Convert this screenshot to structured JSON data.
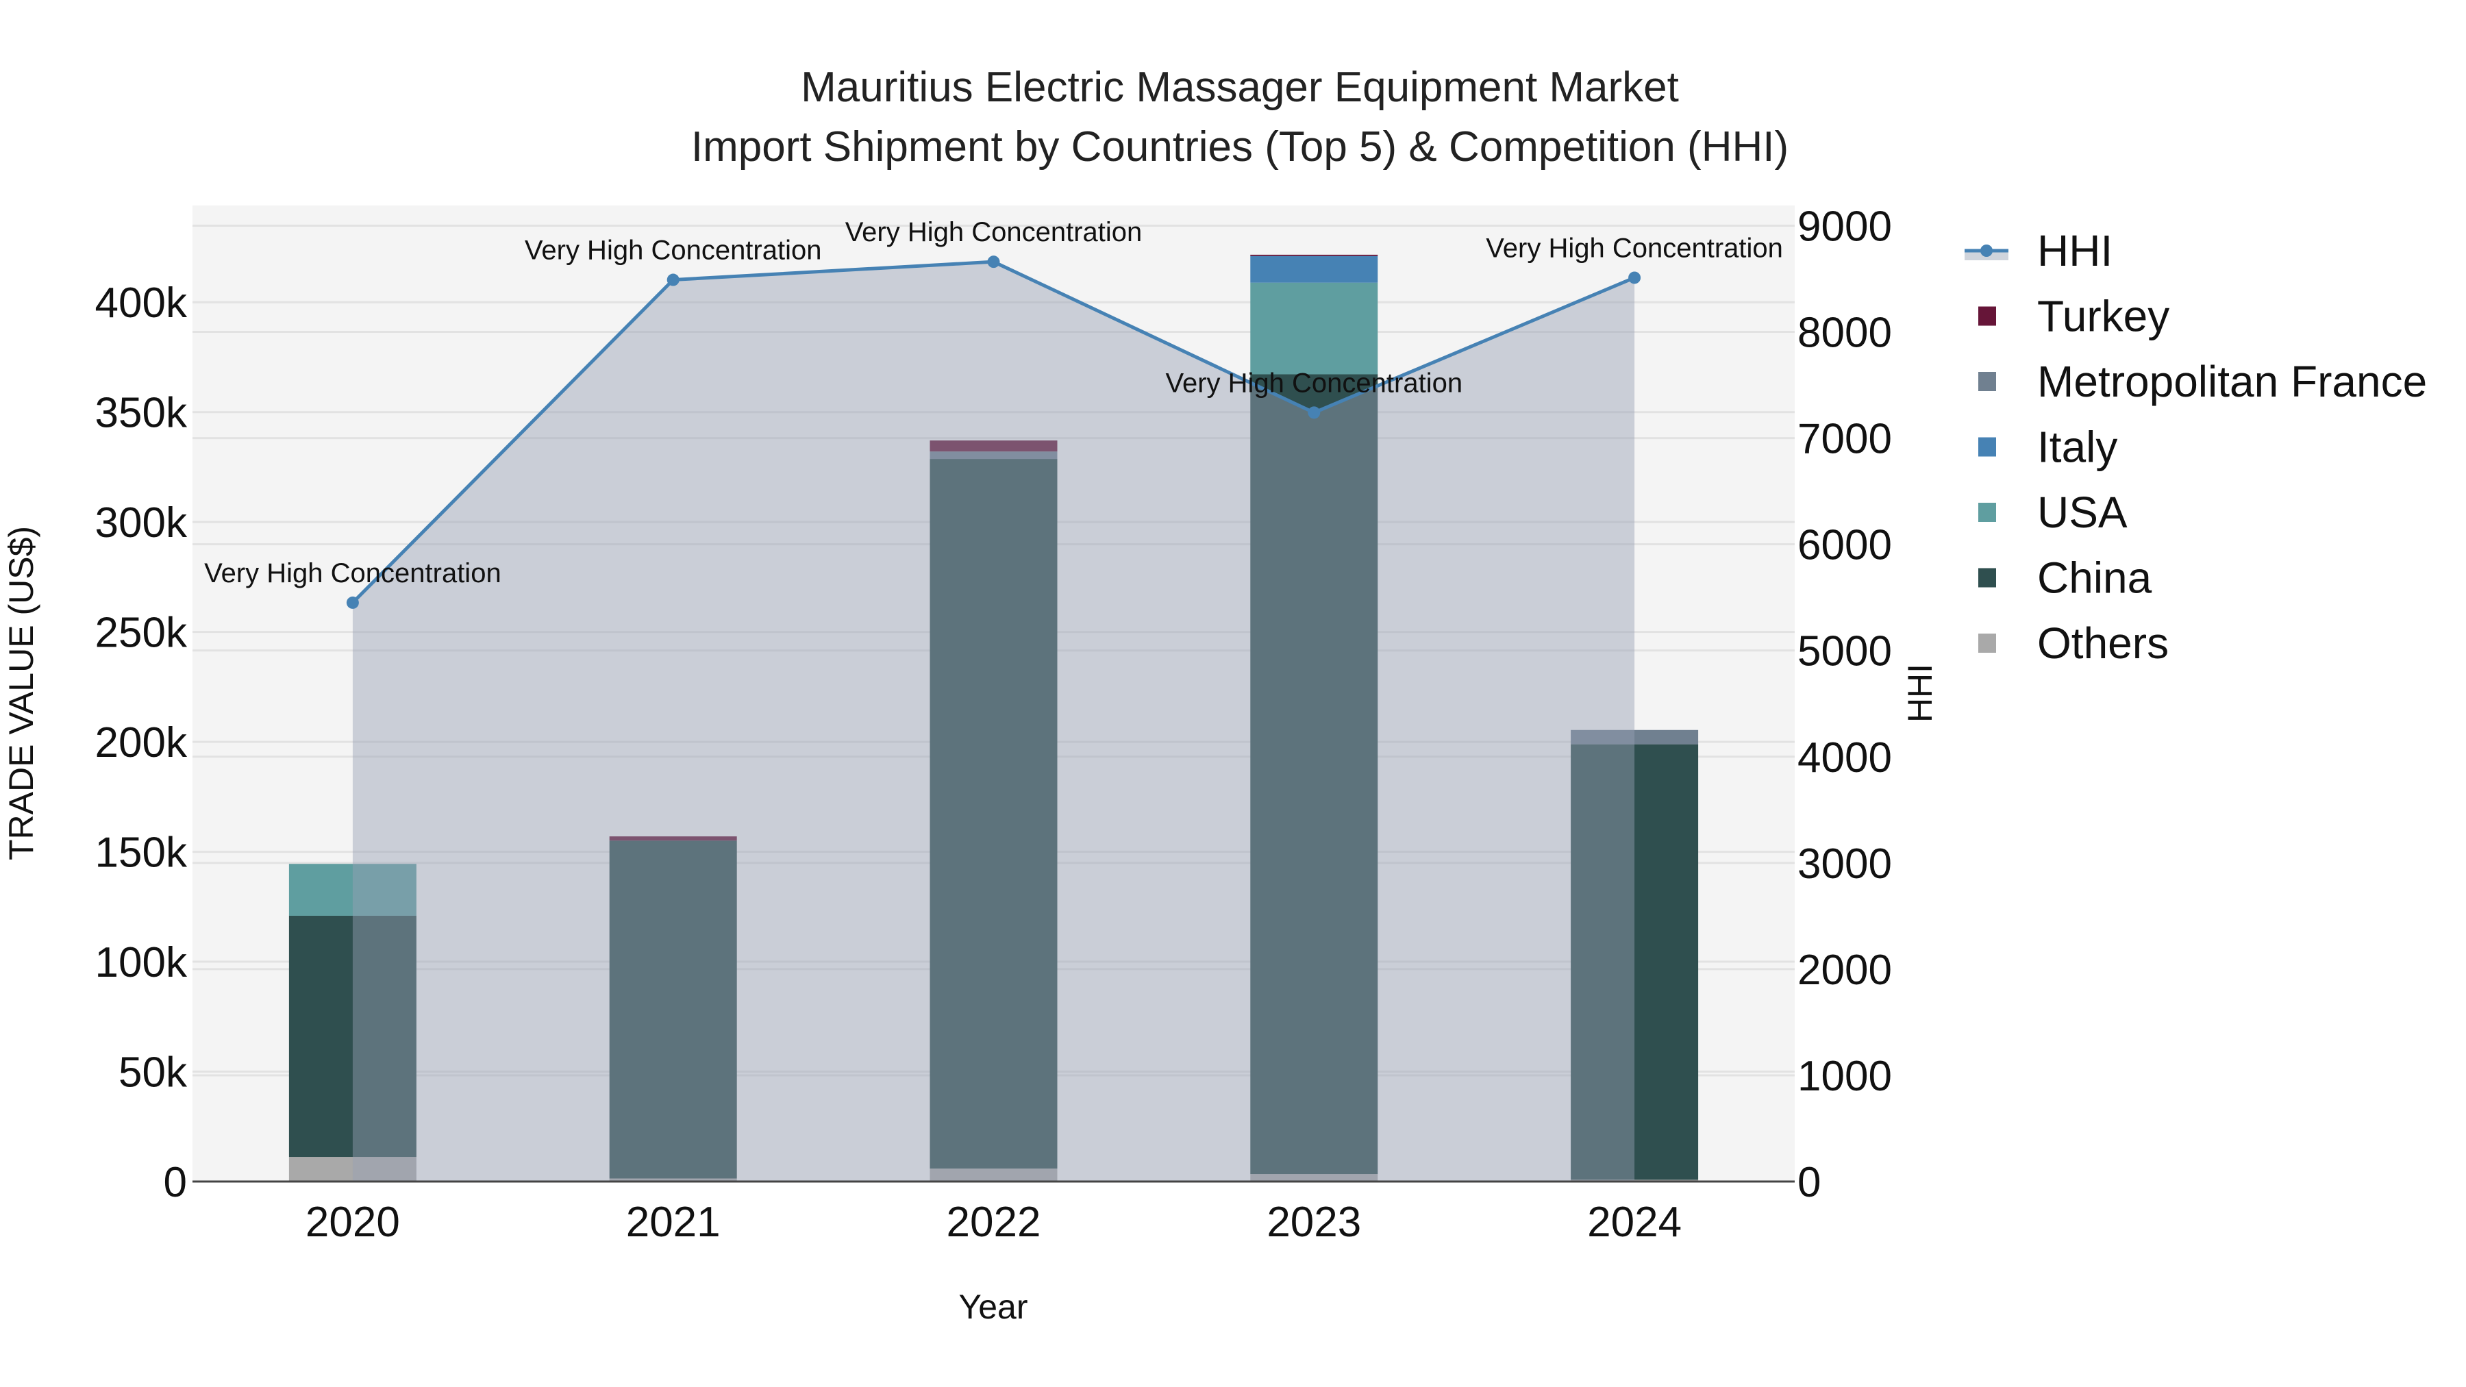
{
  "chart_data": {
    "type": "bar",
    "title": "Mauritius Electric Massager Equipment Market",
    "subtitle": "Import Shipment by Countries (Top 5) & Competition (HHI)",
    "xlabel": "Year",
    "ylabel": "TRADE VALUE (US$)",
    "y2label": "HHI",
    "categories": [
      "2020",
      "2021",
      "2022",
      "2023",
      "2024"
    ],
    "barmode": "stack",
    "ylim": [
      0,
      444000
    ],
    "y2lim": [
      0,
      9190
    ],
    "yticks": [
      0,
      50000,
      100000,
      150000,
      200000,
      250000,
      300000,
      350000,
      400000
    ],
    "ytick_labels": [
      "0",
      "50k",
      "100k",
      "150k",
      "200k",
      "250k",
      "300k",
      "350k",
      "400k"
    ],
    "y2ticks": [
      0,
      1000,
      2000,
      3000,
      4000,
      5000,
      6000,
      7000,
      8000,
      9000
    ],
    "y2tick_labels": [
      "0",
      "1000",
      "2000",
      "3000",
      "4000",
      "5000",
      "6000",
      "7000",
      "8000",
      "9000"
    ],
    "series": [
      {
        "name": "Others",
        "color": "#a9a9a9",
        "values": [
          11200,
          1400,
          5900,
          3400,
          800
        ]
      },
      {
        "name": "China",
        "color": "#2f4f4f",
        "values": [
          109700,
          153700,
          322800,
          363800,
          198100
        ]
      },
      {
        "name": "USA",
        "color": "#5f9ea0",
        "values": [
          23600,
          0,
          0,
          41700,
          0
        ]
      },
      {
        "name": "Italy",
        "color": "#4682b4",
        "values": [
          0,
          0,
          0,
          12100,
          0
        ]
      },
      {
        "name": "Metropolitan France",
        "color": "#708090",
        "values": [
          0,
          0,
          3400,
          0,
          6500
        ]
      },
      {
        "name": "Turkey",
        "color": "#661538",
        "values": [
          0,
          1900,
          5000,
          600,
          0
        ]
      }
    ],
    "line_series": {
      "name": "HHI",
      "color": "#4682b4",
      "fill_color": "rgba(150,160,180,0.45)",
      "axis": "y2",
      "values": [
        5450,
        8490,
        8660,
        7240,
        8510
      ],
      "annotations": [
        "Very High Concentration",
        "Very High Concentration",
        "Very High Concentration",
        "Very High Concentration",
        "Very High Concentration"
      ]
    },
    "legend": [
      "HHI",
      "Turkey",
      "Metropolitan France",
      "Italy",
      "USA",
      "China",
      "Others"
    ],
    "legend_position": "right",
    "grid": true,
    "plot_bgcolor": "#f4f4f4"
  }
}
